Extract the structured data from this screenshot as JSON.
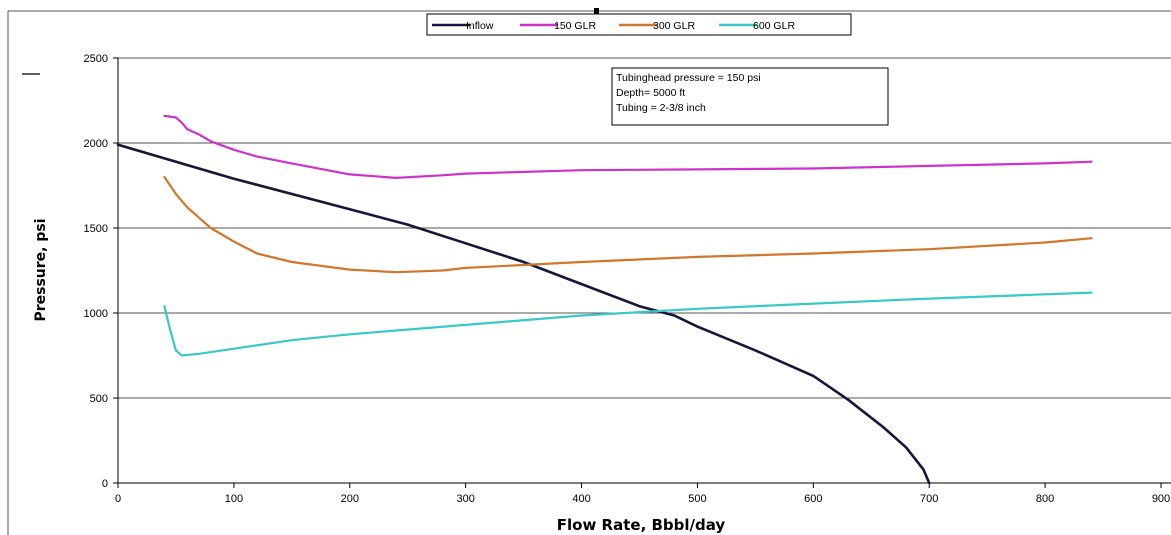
{
  "chart_data": {
    "type": "line",
    "title": "",
    "xlabel": "Flow Rate, Bbbl/day",
    "ylabel": "Pressure, psi",
    "xlim": [
      0,
      900
    ],
    "ylim": [
      0,
      2500
    ],
    "x_ticks": [
      "0",
      "100",
      "200",
      "300",
      "400",
      "500",
      "600",
      "700",
      "800",
      "900"
    ],
    "y_ticks": [
      "0",
      "500",
      "1000",
      "1500",
      "2000",
      "2500"
    ],
    "grid": "horizontal",
    "legend_position": "top-center",
    "annotation": [
      "Tubinghead pressure = 150 psi",
      "Depth= 5000 ft",
      "Tubing = 2-3/8 inch"
    ],
    "series": [
      {
        "name": "Inflow",
        "color": "#14163c",
        "x": [
          0,
          100,
          200,
          250,
          300,
          350,
          400,
          450,
          480,
          500,
          550,
          600,
          630,
          660,
          680,
          695,
          700
        ],
        "y": [
          1990,
          1790,
          1610,
          1520,
          1410,
          1300,
          1170,
          1040,
          985,
          920,
          780,
          630,
          490,
          330,
          210,
          80,
          0
        ]
      },
      {
        "name": "150 GLR",
        "color": "#cc33cc",
        "x": [
          40,
          50,
          55,
          60,
          70,
          80,
          100,
          120,
          150,
          200,
          240,
          280,
          300,
          400,
          500,
          600,
          700,
          800,
          840
        ],
        "y": [
          2160,
          2150,
          2120,
          2080,
          2050,
          2010,
          1960,
          1920,
          1880,
          1815,
          1795,
          1810,
          1820,
          1840,
          1845,
          1850,
          1865,
          1880,
          1890
        ]
      },
      {
        "name": "300 GLR",
        "color": "#d2762c",
        "x": [
          40,
          50,
          60,
          70,
          80,
          100,
          120,
          150,
          200,
          240,
          280,
          300,
          400,
          500,
          600,
          700,
          800,
          840
        ],
        "y": [
          1800,
          1700,
          1620,
          1560,
          1500,
          1420,
          1350,
          1300,
          1255,
          1240,
          1250,
          1265,
          1300,
          1330,
          1350,
          1375,
          1415,
          1440
        ]
      },
      {
        "name": "600 GLR",
        "color": "#39c8c8",
        "x": [
          40,
          45,
          50,
          55,
          70,
          100,
          150,
          200,
          300,
          400,
          500,
          600,
          700,
          800,
          840
        ],
        "y": [
          1040,
          900,
          780,
          750,
          760,
          790,
          840,
          875,
          930,
          985,
          1025,
          1055,
          1085,
          1110,
          1120
        ]
      }
    ]
  }
}
